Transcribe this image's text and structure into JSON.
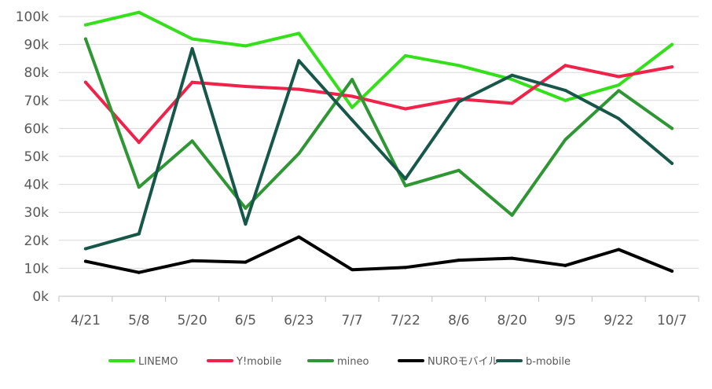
{
  "chart_data": {
    "type": "line",
    "title": "",
    "xlabel": "",
    "ylabel": "",
    "ylim": [
      0,
      100000
    ],
    "y_ticks": [
      0,
      10000,
      20000,
      30000,
      40000,
      50000,
      60000,
      70000,
      80000,
      90000,
      100000
    ],
    "y_tick_labels": [
      "0k",
      "10k",
      "20k",
      "30k",
      "40k",
      "50k",
      "60k",
      "70k",
      "80k",
      "90k",
      "100k"
    ],
    "grid": true,
    "legend_position": "bottom",
    "categories": [
      "4/21",
      "5/8",
      "5/20",
      "6/5",
      "6/23",
      "7/7",
      "7/22",
      "8/6",
      "8/20",
      "9/5",
      "9/22",
      "10/7"
    ],
    "series": [
      {
        "name": "LINEMO",
        "color": "#33e01a",
        "values": [
          97000,
          101500,
          92000,
          89500,
          94000,
          67500,
          86000,
          82500,
          77500,
          70000,
          75500,
          90000
        ]
      },
      {
        "name": "Y!mobile",
        "color": "#f0224a",
        "values": [
          76500,
          55000,
          76500,
          75000,
          74000,
          71500,
          67000,
          70500,
          69000,
          82500,
          78500,
          82000
        ]
      },
      {
        "name": "mineo",
        "color": "#2e9633",
        "values": [
          92000,
          39000,
          55500,
          31500,
          51000,
          77500,
          39500,
          45000,
          29000,
          56000,
          73500,
          60000
        ]
      },
      {
        "name": "NUROモバイル",
        "color": "#000000",
        "values": [
          12500,
          8500,
          12700,
          12200,
          21200,
          9500,
          10300,
          12900,
          13600,
          11000,
          16700,
          9000
        ]
      },
      {
        "name": "b-mobile",
        "color": "#17574a",
        "values": [
          17000,
          22300,
          88500,
          25800,
          84200,
          63000,
          42000,
          69500,
          79000,
          73600,
          63500,
          47500
        ]
      }
    ]
  }
}
